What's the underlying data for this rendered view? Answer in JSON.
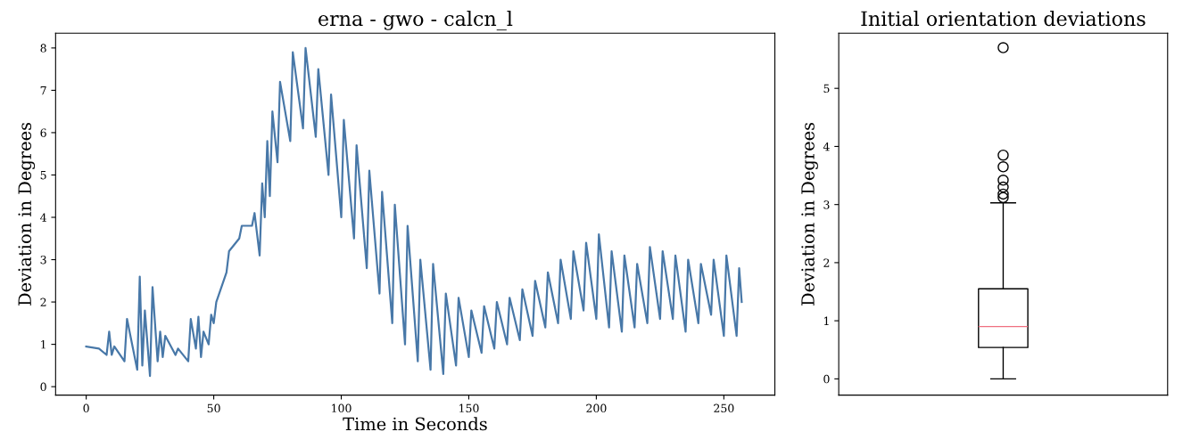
{
  "chart_data": [
    {
      "type": "line",
      "title": "erna - gwo - calcn_l",
      "xlabel": "Time in Seconds",
      "ylabel": "Deviation in Degrees",
      "xlim": [
        -12,
        270
      ],
      "xticks": [
        0,
        50,
        100,
        150,
        200,
        250
      ],
      "ylim": [
        -0.2,
        8.35
      ],
      "yticks": [
        0,
        1,
        2,
        3,
        4,
        5,
        6,
        7,
        8
      ],
      "grid": false,
      "legend": false,
      "series": [
        {
          "color": "#4878a8",
          "x": [
            0,
            5,
            8,
            9,
            10,
            11,
            15,
            16,
            20,
            21,
            22,
            23,
            25,
            26,
            28,
            29,
            30,
            31,
            35,
            36,
            40,
            41,
            43,
            44,
            45,
            46,
            48,
            49,
            50,
            51,
            55,
            56,
            60,
            61,
            65,
            66,
            68,
            69,
            70,
            71,
            72,
            73,
            75,
            76,
            80,
            81,
            85,
            86,
            90,
            91,
            95,
            96,
            100,
            101,
            105,
            106,
            110,
            111,
            115,
            116,
            120,
            121,
            125,
            126,
            130,
            131,
            135,
            136,
            140,
            141,
            145,
            146,
            150,
            151,
            155,
            156,
            160,
            161,
            165,
            166,
            170,
            171,
            175,
            176,
            180,
            181,
            185,
            186,
            190,
            191,
            195,
            196,
            200,
            201,
            205,
            206,
            210,
            211,
            215,
            216,
            220,
            221,
            225,
            226,
            230,
            231,
            235,
            236,
            240,
            241,
            245,
            246,
            250,
            251,
            255,
            256,
            257
          ],
          "values": [
            0.95,
            0.9,
            0.75,
            1.3,
            0.75,
            0.95,
            0.6,
            1.6,
            0.4,
            2.6,
            0.5,
            1.8,
            0.25,
            2.35,
            0.6,
            1.3,
            0.7,
            1.2,
            0.75,
            0.9,
            0.6,
            1.6,
            0.9,
            1.65,
            0.7,
            1.3,
            1.0,
            1.7,
            1.5,
            2.0,
            2.7,
            3.2,
            3.5,
            3.8,
            3.8,
            4.1,
            3.1,
            4.8,
            4.0,
            5.8,
            4.5,
            6.5,
            5.3,
            7.2,
            5.8,
            7.9,
            6.1,
            8.0,
            5.9,
            7.5,
            5.0,
            6.9,
            4.0,
            6.3,
            3.5,
            5.7,
            2.8,
            5.1,
            2.2,
            4.6,
            1.5,
            4.3,
            1.0,
            3.8,
            0.6,
            3.0,
            0.4,
            2.9,
            0.3,
            2.2,
            0.5,
            2.1,
            0.7,
            1.8,
            0.8,
            1.9,
            0.9,
            2.0,
            1.0,
            2.1,
            1.1,
            2.3,
            1.2,
            2.5,
            1.4,
            2.7,
            1.5,
            3.0,
            1.6,
            3.2,
            1.8,
            3.4,
            1.6,
            3.6,
            1.4,
            3.2,
            1.3,
            3.1,
            1.4,
            2.9,
            1.5,
            3.3,
            1.6,
            3.2,
            1.6,
            3.1,
            1.3,
            3.0,
            1.5,
            2.9,
            1.7,
            3.0,
            1.2,
            3.1,
            1.2,
            2.8,
            2.0
          ]
        }
      ]
    },
    {
      "type": "box",
      "title": "Initial orientation deviations",
      "ylabel": "Deviation in Degrees",
      "categories": [
        null
      ],
      "tick_labels": "y",
      "ylim": [
        -0.28,
        5.95
      ],
      "yticks": [
        0,
        1,
        2,
        3,
        4,
        5
      ],
      "grid": false,
      "series": [
        {
          "color": "#000000",
          "boxes": [
            {
              "low": 0,
              "q1": 0.54,
              "median": 0.9,
              "q3": 1.55,
              "high": 3.03,
              "outliers": [
                3.12,
                3.18,
                3.3,
                3.42,
                3.65,
                3.85,
                5.7
              ]
            }
          ]
        }
      ]
    }
  ]
}
